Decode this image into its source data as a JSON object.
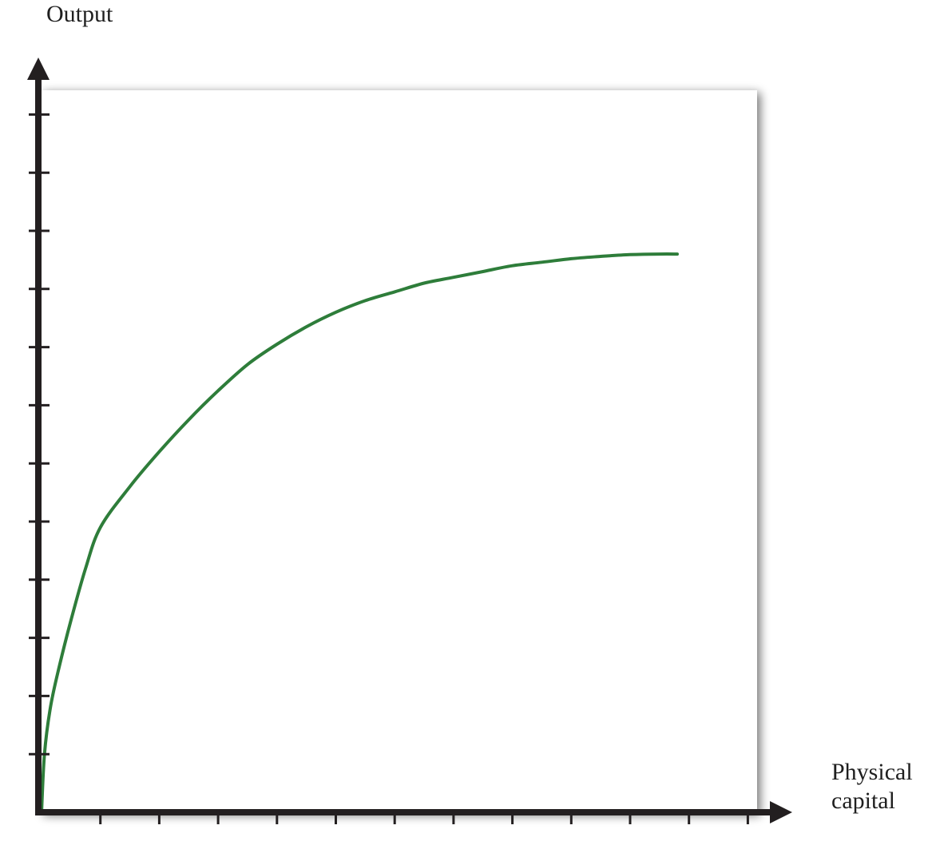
{
  "chart_data": {
    "type": "line",
    "title": "",
    "xlabel": "Physical capital",
    "xlabel_lines": [
      "Physical",
      "capital"
    ],
    "ylabel": "Output",
    "xlim": [
      0,
      12
    ],
    "ylim": [
      0,
      12
    ],
    "x_ticks": [
      1,
      2,
      3,
      4,
      5,
      6,
      7,
      8,
      9,
      10,
      11,
      12
    ],
    "y_ticks": [
      1,
      2,
      3,
      4,
      5,
      6,
      7,
      8,
      9,
      10,
      11,
      12
    ],
    "tick_labels_shown": false,
    "grid": false,
    "legend": "none",
    "series": [
      {
        "color": "#2e7d3a",
        "x": [
          0,
          0.05,
          0.15,
          0.3,
          0.5,
          0.75,
          1,
          1.5,
          2,
          2.5,
          3,
          3.5,
          4,
          4.5,
          5,
          5.5,
          6,
          6.5,
          7,
          7.5,
          8,
          8.5,
          9,
          9.5,
          10,
          10.5,
          10.8
        ],
        "y": [
          0,
          1.0,
          1.8,
          2.5,
          3.3,
          4.2,
          4.9,
          5.6,
          6.2,
          6.75,
          7.25,
          7.7,
          8.05,
          8.35,
          8.6,
          8.8,
          8.95,
          9.1,
          9.2,
          9.3,
          9.4,
          9.46,
          9.52,
          9.56,
          9.59,
          9.6,
          9.6
        ]
      }
    ],
    "plot_background": "#ffffff",
    "axis_color": "#231f20"
  }
}
